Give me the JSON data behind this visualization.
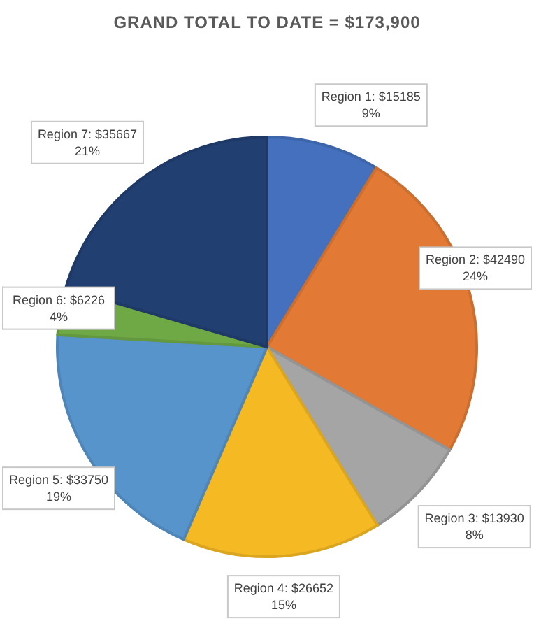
{
  "chart_data": {
    "type": "pie",
    "title": "GRAND TOTAL TO DATE = $173,900",
    "categories": [
      "Region 1",
      "Region 2",
      "Region 3",
      "Region 4",
      "Region 5",
      "Region 6",
      "Region 7"
    ],
    "values": [
      15185,
      42490,
      13930,
      26652,
      33750,
      6226,
      35667
    ],
    "colors": [
      "#4470bd",
      "#e27a35",
      "#a5a5a5",
      "#f4b923",
      "#5894cc",
      "#6fa945",
      "#223f72"
    ],
    "value_labels": [
      ": $15185\n9%",
      ": $42490\n24%",
      ": $13930\n8%",
      ": $26652\n15%",
      ": $33750\n19%",
      ": $6226\n4%",
      ": $35667\n21%"
    ]
  }
}
